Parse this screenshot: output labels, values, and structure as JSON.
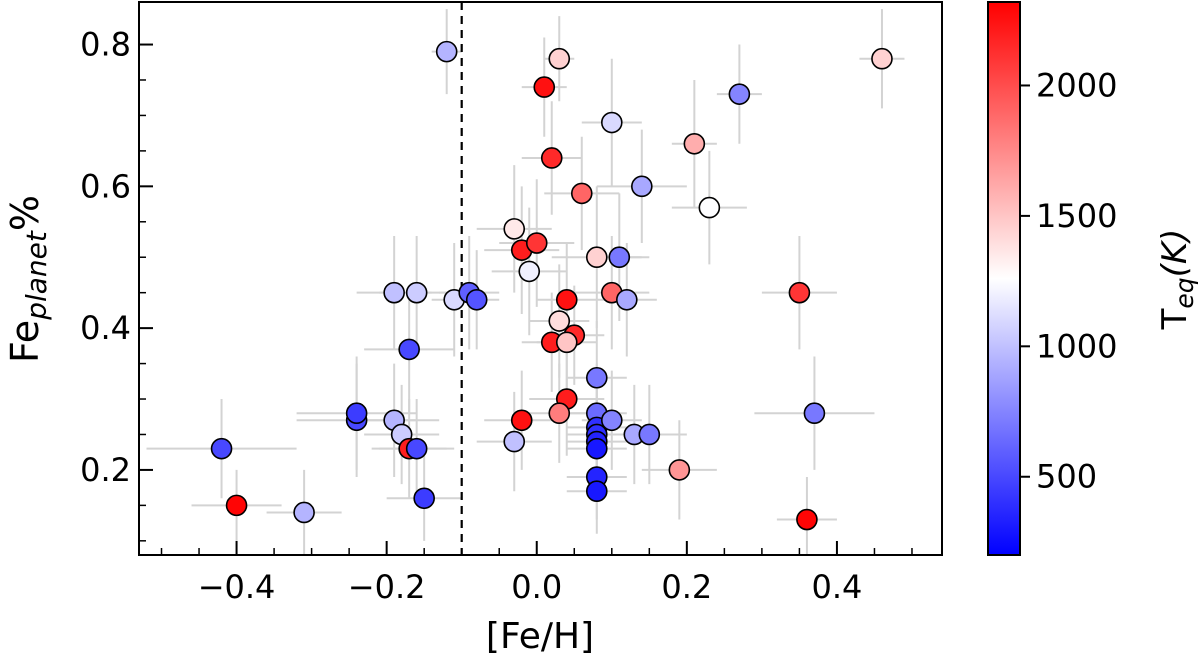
{
  "chart_data": {
    "type": "scatter",
    "xlabel": "[Fe/H]",
    "ylabel": {
      "base": "Fe",
      "sub": "planet",
      "suffix": "%"
    },
    "xlim": [
      -0.53,
      0.54
    ],
    "ylim": [
      0.08,
      0.86
    ],
    "xticks": [
      {
        "value": -0.4,
        "label": "−0.4"
      },
      {
        "value": -0.2,
        "label": "−0.2"
      },
      {
        "value": 0.0,
        "label": "0.0"
      },
      {
        "value": 0.2,
        "label": "0.2"
      },
      {
        "value": 0.4,
        "label": "0.4"
      }
    ],
    "yticks": [
      {
        "value": 0.2,
        "label": "0.2"
      },
      {
        "value": 0.4,
        "label": "0.4"
      },
      {
        "value": 0.6,
        "label": "0.6"
      },
      {
        "value": 0.8,
        "label": "0.8"
      }
    ],
    "vline": -0.1,
    "colorbar": {
      "label": {
        "base": "T",
        "sub": "eq",
        "suffix": "(K)"
      },
      "range": [
        200,
        2320
      ],
      "ticks": [
        {
          "value": 500,
          "label": "500"
        },
        {
          "value": 1000,
          "label": "1000"
        },
        {
          "value": 1500,
          "label": "1500"
        },
        {
          "value": 2000,
          "label": "2000"
        }
      ],
      "colors": {
        "low": "#0000ff",
        "mid": "#ffffff",
        "high": "#ff0000"
      }
    },
    "points": [
      {
        "x": -0.12,
        "y": 0.79,
        "xerr": 0.02,
        "yerr": 0.06,
        "teq": 950
      },
      {
        "x": 0.03,
        "y": 0.78,
        "xerr": 0.02,
        "yerr": 0.06,
        "teq": 1450
      },
      {
        "x": 0.46,
        "y": 0.78,
        "xerr": 0.03,
        "yerr": 0.07,
        "teq": 1450
      },
      {
        "x": 0.01,
        "y": 0.74,
        "xerr": 0.03,
        "yerr": 0.07,
        "teq": 2250
      },
      {
        "x": 0.27,
        "y": 0.73,
        "xerr": 0.03,
        "yerr": 0.07,
        "teq": 750
      },
      {
        "x": 0.1,
        "y": 0.69,
        "xerr": 0.04,
        "yerr": 0.09,
        "teq": 1100
      },
      {
        "x": 0.21,
        "y": 0.66,
        "xerr": 0.03,
        "yerr": 0.09,
        "teq": 1600
      },
      {
        "x": 0.02,
        "y": 0.64,
        "xerr": 0.04,
        "yerr": 0.08,
        "teq": 2150
      },
      {
        "x": 0.14,
        "y": 0.6,
        "xerr": 0.06,
        "yerr": 0.08,
        "teq": 900
      },
      {
        "x": 0.06,
        "y": 0.59,
        "xerr": 0.05,
        "yerr": 0.08,
        "teq": 1900
      },
      {
        "x": 0.23,
        "y": 0.57,
        "xerr": 0.05,
        "yerr": 0.08,
        "teq": 1250
      },
      {
        "x": -0.03,
        "y": 0.54,
        "xerr": 0.05,
        "yerr": 0.09,
        "teq": 1350
      },
      {
        "x": -0.02,
        "y": 0.51,
        "xerr": 0.05,
        "yerr": 0.09,
        "teq": 2200
      },
      {
        "x": 0.0,
        "y": 0.52,
        "xerr": 0.05,
        "yerr": 0.09,
        "teq": 2100
      },
      {
        "x": 0.08,
        "y": 0.5,
        "xerr": 0.06,
        "yerr": 0.1,
        "teq": 1450
      },
      {
        "x": 0.11,
        "y": 0.5,
        "xerr": 0.04,
        "yerr": 0.09,
        "teq": 700
      },
      {
        "x": -0.01,
        "y": 0.48,
        "xerr": 0.05,
        "yerr": 0.09,
        "teq": 1200
      },
      {
        "x": -0.19,
        "y": 0.45,
        "xerr": 0.05,
        "yerr": 0.08,
        "teq": 1000
      },
      {
        "x": -0.16,
        "y": 0.45,
        "xerr": 0.05,
        "yerr": 0.08,
        "teq": 1050
      },
      {
        "x": -0.11,
        "y": 0.44,
        "xerr": 0.03,
        "yerr": 0.08,
        "teq": 1100
      },
      {
        "x": -0.09,
        "y": 0.45,
        "xerr": 0.04,
        "yerr": 0.08,
        "teq": 600
      },
      {
        "x": -0.08,
        "y": 0.44,
        "xerr": 0.03,
        "yerr": 0.07,
        "teq": 550
      },
      {
        "x": 0.04,
        "y": 0.44,
        "xerr": 0.04,
        "yerr": 0.08,
        "teq": 2250
      },
      {
        "x": 0.1,
        "y": 0.45,
        "xerr": 0.05,
        "yerr": 0.08,
        "teq": 1900
      },
      {
        "x": 0.12,
        "y": 0.44,
        "xerr": 0.04,
        "yerr": 0.08,
        "teq": 900
      },
      {
        "x": 0.35,
        "y": 0.45,
        "xerr": 0.05,
        "yerr": 0.08,
        "teq": 2100
      },
      {
        "x": 0.03,
        "y": 0.41,
        "xerr": 0.04,
        "yerr": 0.08,
        "teq": 1400
      },
      {
        "x": 0.02,
        "y": 0.38,
        "xerr": 0.04,
        "yerr": 0.07,
        "teq": 2200
      },
      {
        "x": 0.05,
        "y": 0.39,
        "xerr": 0.04,
        "yerr": 0.07,
        "teq": 2150
      },
      {
        "x": 0.04,
        "y": 0.38,
        "xerr": 0.04,
        "yerr": 0.07,
        "teq": 1500
      },
      {
        "x": -0.17,
        "y": 0.37,
        "xerr": 0.06,
        "yerr": 0.09,
        "teq": 500
      },
      {
        "x": 0.08,
        "y": 0.33,
        "xerr": 0.04,
        "yerr": 0.08,
        "teq": 700
      },
      {
        "x": 0.04,
        "y": 0.3,
        "xerr": 0.05,
        "yerr": 0.08,
        "teq": 2200
      },
      {
        "x": -0.24,
        "y": 0.27,
        "xerr": 0.08,
        "yerr": 0.08,
        "teq": 500
      },
      {
        "x": -0.24,
        "y": 0.28,
        "xerr": 0.08,
        "yerr": 0.08,
        "teq": 450
      },
      {
        "x": -0.19,
        "y": 0.27,
        "xerr": 0.06,
        "yerr": 0.08,
        "teq": 950
      },
      {
        "x": -0.18,
        "y": 0.25,
        "xerr": 0.05,
        "yerr": 0.07,
        "teq": 1050
      },
      {
        "x": -0.17,
        "y": 0.23,
        "xerr": 0.05,
        "yerr": 0.07,
        "teq": 2200
      },
      {
        "x": -0.16,
        "y": 0.23,
        "xerr": 0.05,
        "yerr": 0.07,
        "teq": 500
      },
      {
        "x": -0.42,
        "y": 0.23,
        "xerr": 0.1,
        "yerr": 0.07,
        "teq": 500
      },
      {
        "x": -0.4,
        "y": 0.15,
        "xerr": 0.06,
        "yerr": 0.05,
        "teq": 2300
      },
      {
        "x": -0.31,
        "y": 0.14,
        "xerr": 0.05,
        "yerr": 0.06,
        "teq": 950
      },
      {
        "x": -0.15,
        "y": 0.16,
        "xerr": 0.05,
        "yerr": 0.06,
        "teq": 450
      },
      {
        "x": -0.03,
        "y": 0.24,
        "xerr": 0.05,
        "yerr": 0.07,
        "teq": 1000
      },
      {
        "x": -0.02,
        "y": 0.27,
        "xerr": 0.05,
        "yerr": 0.07,
        "teq": 2250
      },
      {
        "x": 0.03,
        "y": 0.28,
        "xerr": 0.04,
        "yerr": 0.07,
        "teq": 1800
      },
      {
        "x": 0.08,
        "y": 0.28,
        "xerr": 0.04,
        "yerr": 0.07,
        "teq": 650
      },
      {
        "x": 0.08,
        "y": 0.26,
        "xerr": 0.04,
        "yerr": 0.06,
        "teq": 400
      },
      {
        "x": 0.08,
        "y": 0.25,
        "xerr": 0.04,
        "yerr": 0.06,
        "teq": 400
      },
      {
        "x": 0.08,
        "y": 0.24,
        "xerr": 0.04,
        "yerr": 0.06,
        "teq": 350
      },
      {
        "x": 0.08,
        "y": 0.23,
        "xerr": 0.04,
        "yerr": 0.06,
        "teq": 300
      },
      {
        "x": 0.1,
        "y": 0.27,
        "xerr": 0.04,
        "yerr": 0.07,
        "teq": 750
      },
      {
        "x": 0.13,
        "y": 0.25,
        "xerr": 0.05,
        "yerr": 0.07,
        "teq": 900
      },
      {
        "x": 0.15,
        "y": 0.25,
        "xerr": 0.05,
        "yerr": 0.07,
        "teq": 700
      },
      {
        "x": 0.08,
        "y": 0.19,
        "xerr": 0.04,
        "yerr": 0.06,
        "teq": 350
      },
      {
        "x": 0.08,
        "y": 0.17,
        "xerr": 0.04,
        "yerr": 0.06,
        "teq": 300
      },
      {
        "x": 0.19,
        "y": 0.2,
        "xerr": 0.05,
        "yerr": 0.07,
        "teq": 1700
      },
      {
        "x": 0.37,
        "y": 0.28,
        "xerr": 0.08,
        "yerr": 0.08,
        "teq": 700
      },
      {
        "x": 0.36,
        "y": 0.13,
        "xerr": 0.04,
        "yerr": 0.06,
        "teq": 2300
      }
    ]
  }
}
